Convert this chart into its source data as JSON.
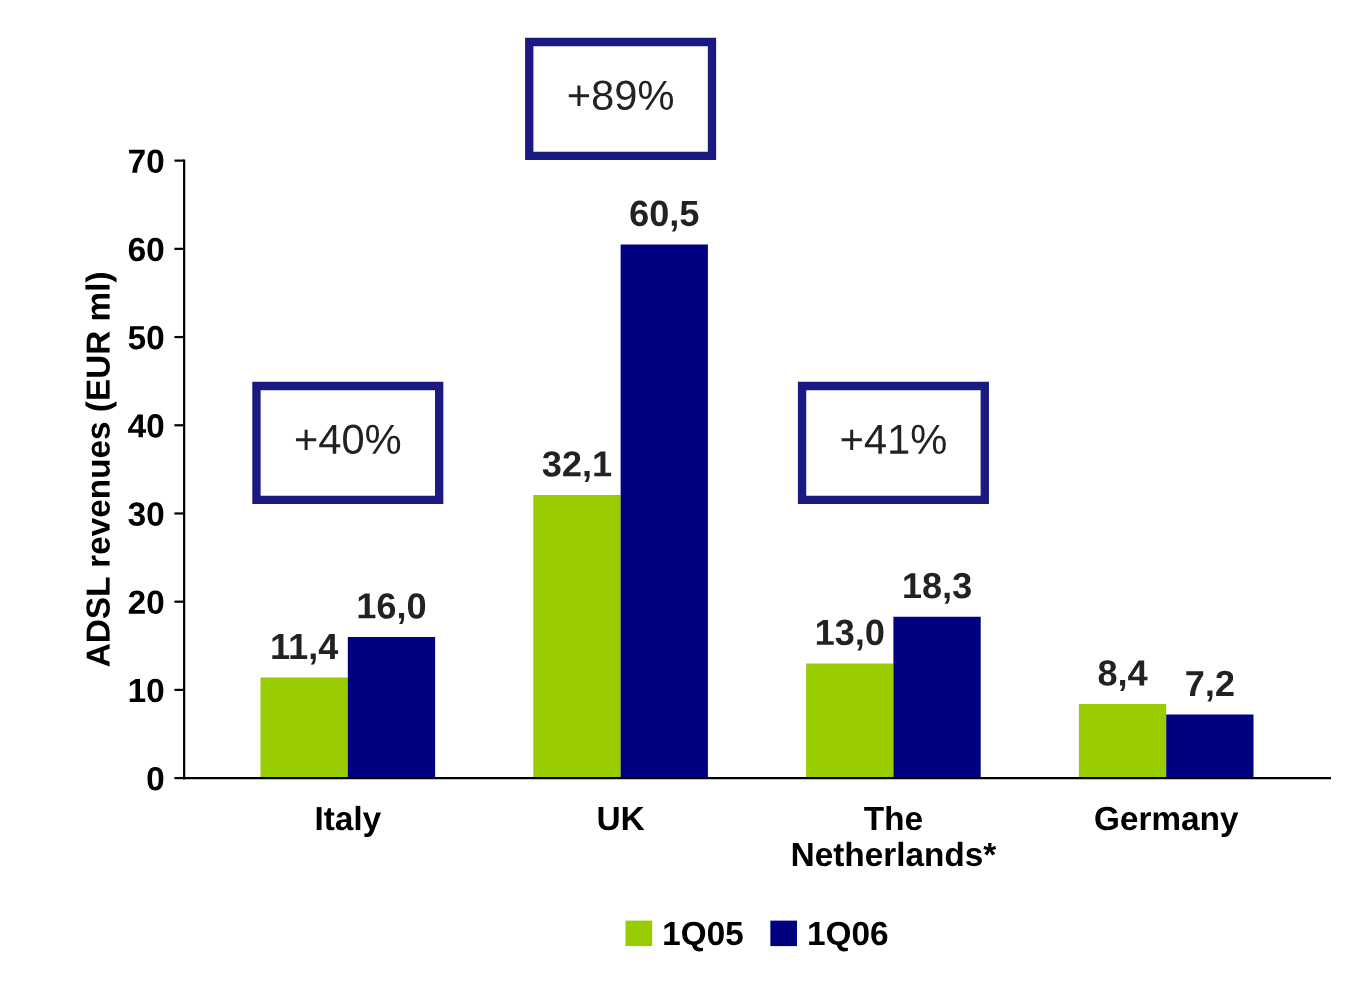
{
  "chart_data": {
    "type": "bar",
    "ylabel": "ADSL revenues (EUR ml)",
    "categories": [
      "Italy",
      "UK",
      "The\nNetherlands*",
      "Germany"
    ],
    "series": [
      {
        "name": "1Q05",
        "color": "#99cc00",
        "values": [
          11.4,
          32.1,
          13.0,
          8.4
        ],
        "value_labels": [
          "11,4",
          "32,1",
          "13,0",
          "8,4"
        ]
      },
      {
        "name": "1Q06",
        "color": "#000080",
        "values": [
          16.0,
          60.5,
          18.3,
          7.2
        ],
        "value_labels": [
          "16,0",
          "60,5",
          "18,3",
          "7,2"
        ]
      }
    ],
    "ylim": [
      0,
      70
    ],
    "yticks": [
      0,
      10,
      20,
      30,
      40,
      50,
      60,
      70
    ],
    "annotations": [
      "+40%",
      "+89%",
      "+41%"
    ],
    "grid": false,
    "legend": "bottom"
  }
}
